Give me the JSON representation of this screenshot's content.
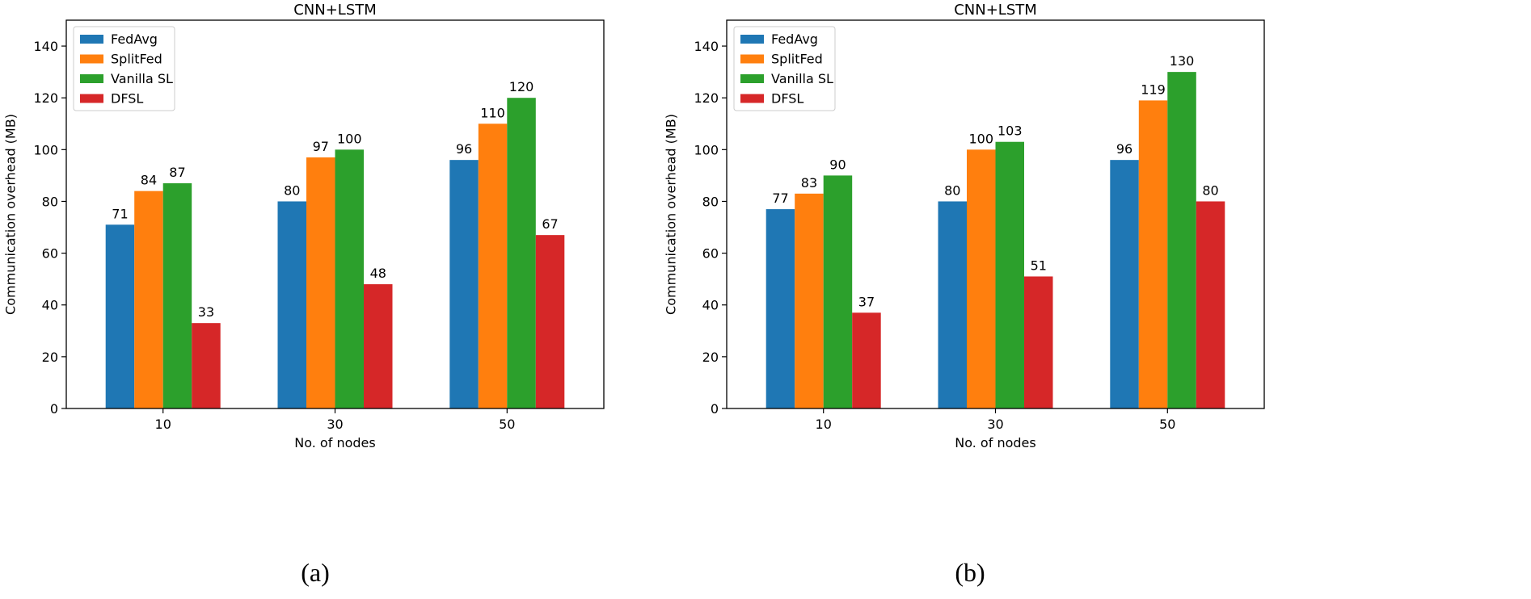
{
  "chart_data": [
    {
      "type": "bar",
      "title": "CNN+LSTM",
      "caption": "(a)",
      "xlabel": "No. of nodes",
      "ylabel": "Communication overhead (MB)",
      "ylim": [
        0,
        150
      ],
      "yticks": [
        0,
        20,
        40,
        60,
        80,
        100,
        120,
        140
      ],
      "categories": [
        "10",
        "30",
        "50"
      ],
      "grid": false,
      "legend_position": "upper-left",
      "series": [
        {
          "name": "FedAvg",
          "color": "#1f77b4",
          "values": [
            71,
            80,
            96
          ]
        },
        {
          "name": "SplitFed",
          "color": "#ff7f0e",
          "values": [
            84,
            97,
            110
          ]
        },
        {
          "name": "Vanilla SL",
          "color": "#2ca02c",
          "values": [
            87,
            100,
            120
          ]
        },
        {
          "name": "DFSL",
          "color": "#d62728",
          "values": [
            33,
            48,
            67
          ]
        }
      ]
    },
    {
      "type": "bar",
      "title": "CNN+LSTM",
      "caption": "(b)",
      "xlabel": "No. of nodes",
      "ylabel": "Communication overhead (MB)",
      "ylim": [
        0,
        150
      ],
      "yticks": [
        0,
        20,
        40,
        60,
        80,
        100,
        120,
        140
      ],
      "categories": [
        "10",
        "30",
        "50"
      ],
      "grid": false,
      "legend_position": "upper-left",
      "series": [
        {
          "name": "FedAvg",
          "color": "#1f77b4",
          "values": [
            77,
            80,
            96
          ]
        },
        {
          "name": "SplitFed",
          "color": "#ff7f0e",
          "values": [
            83,
            100,
            119
          ]
        },
        {
          "name": "Vanilla SL",
          "color": "#2ca02c",
          "values": [
            90,
            103,
            130
          ]
        },
        {
          "name": "DFSL",
          "color": "#d62728",
          "values": [
            37,
            51,
            80
          ]
        }
      ]
    }
  ]
}
